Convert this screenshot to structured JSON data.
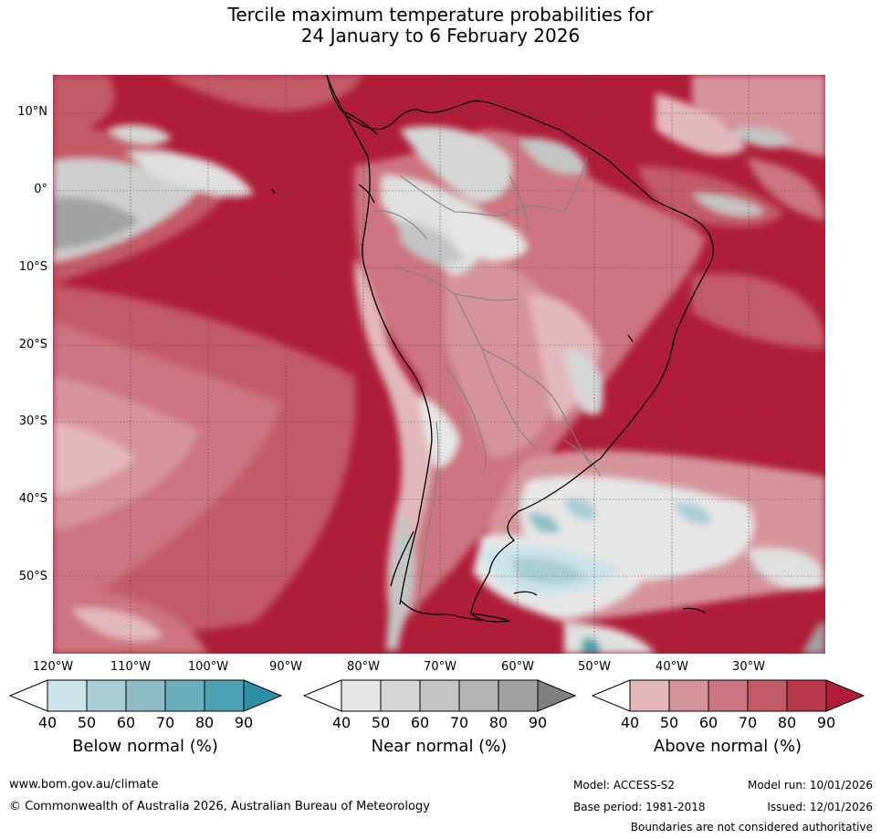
{
  "title": {
    "line1": "Tercile maximum temperature probabilities for",
    "line2": "24 January to 6 February 2026"
  },
  "map": {
    "lat_labels": [
      "10°N",
      "0°",
      "10°S",
      "20°S",
      "30°S",
      "40°S",
      "50°S"
    ],
    "lon_labels": [
      "120°W",
      "110°W",
      "100°W",
      "90°W",
      "80°W",
      "70°W",
      "60°W",
      "50°W",
      "40°W",
      "30°W"
    ]
  },
  "colorbars": {
    "below": {
      "title": "Below normal (%)",
      "ticks": [
        "40",
        "50",
        "60",
        "70",
        "80",
        "90"
      ],
      "colors": [
        "#cbe3e9",
        "#a8cdd5",
        "#8ebdc7",
        "#6aadbb",
        "#4aa2b3"
      ],
      "extend_color": "#2c8fa3"
    },
    "near": {
      "title": "Near normal (%)",
      "ticks": [
        "40",
        "50",
        "60",
        "70",
        "80",
        "90"
      ],
      "colors": [
        "#e6e6e6",
        "#d6d6d6",
        "#c4c4c4",
        "#b3b3b3",
        "#a2a2a2"
      ],
      "extend_color": "#808080"
    },
    "above": {
      "title": "Above normal (%)",
      "ticks": [
        "40",
        "50",
        "60",
        "70",
        "80",
        "90"
      ],
      "colors": [
        "#e3b8bd",
        "#d5949c",
        "#cc7580",
        "#c35a67",
        "#ba3a4c"
      ],
      "extend_color": "#b01d38"
    }
  },
  "colors": {
    "dominant_red": "#b01d38",
    "land_outline": "#000000",
    "border": "#808080"
  },
  "footer": {
    "website": "www.bom.gov.au/climate",
    "copyright": "© Commonwealth of Australia 2026, Australian Bureau of Meteorology",
    "model": "Model: ACCESS-S2",
    "base_period": "Base period: 1981-2018",
    "model_run": "Model run: 10/01/2026",
    "issued": "Issued: 12/01/2026",
    "disclaimer": "Boundaries are not considered authoritative"
  }
}
